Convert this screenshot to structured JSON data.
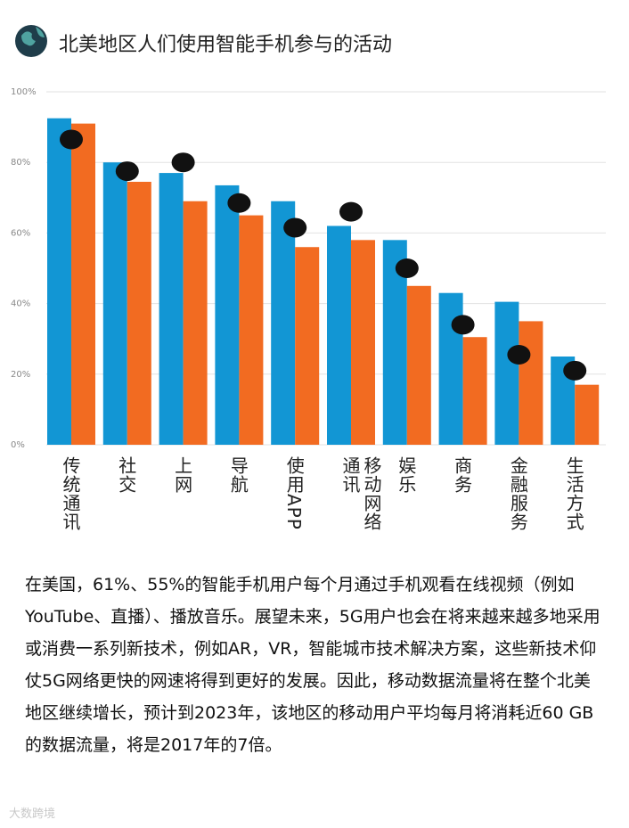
{
  "chart_data": {
    "type": "bar",
    "title": "北美地区人们使用智能手机参与的活动",
    "categories": [
      "传统通讯",
      "社交",
      "上网",
      "导航",
      "使用APP",
      "移动网络通讯",
      "娱乐",
      "商务",
      "金融服务",
      "生活方式"
    ],
    "series": [
      {
        "color": "#1296d4",
        "values": [
          92.5,
          80,
          77,
          73.5,
          69,
          62,
          58,
          43,
          40.5,
          25
        ]
      },
      {
        "color": "#f26b21",
        "values": [
          91,
          74.5,
          69,
          65,
          56,
          58,
          45,
          30.5,
          35,
          17
        ]
      },
      {
        "color": "#111111",
        "marker": "dot",
        "values": [
          86.5,
          77.5,
          80,
          68.5,
          61.5,
          66,
          50,
          34,
          25.5,
          21
        ]
      }
    ],
    "ylim": [
      0,
      100
    ],
    "yticks": [
      {
        "value": 0,
        "label": "0%"
      },
      {
        "value": 20,
        "label": "20%"
      },
      {
        "value": 40,
        "label": "40%"
      },
      {
        "value": 60,
        "label": "60%"
      },
      {
        "value": 80,
        "label": "80%"
      },
      {
        "value": 100,
        "label": "100%"
      }
    ],
    "grid": true
  },
  "body": {
    "paragraph": "在美国，61%、55%的智能手机用户每个月通过手机观看在线视频（例如YouTube、直播）、播放音乐。展望未来，5G用户也会在将来越来越多地采用或消费一系列新技术，例如AR，VR，智能城市技术解决方案，这些新技术仰仗5G网络更快的网速将得到更好的发展。因此，移动数据流量将在整个北美地区继续增长，预计到2023年，该地区的移动用户平均每月将消耗近60 GB的数据流量，将是2017年的7倍。",
    "watermark": "大数跨境"
  }
}
